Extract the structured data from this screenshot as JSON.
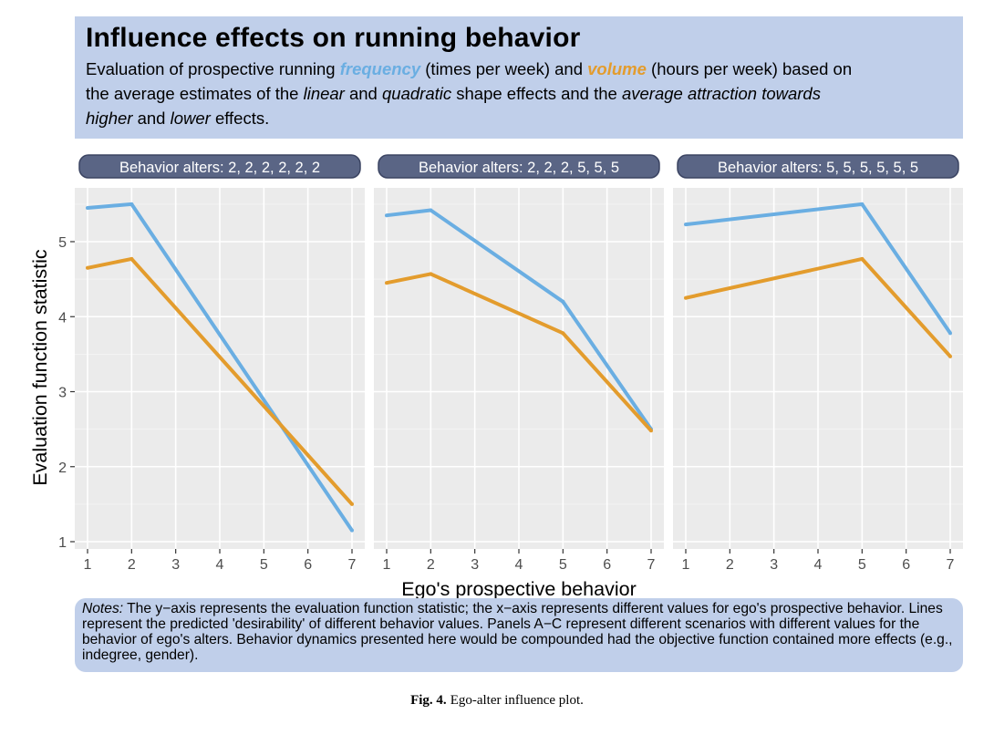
{
  "header": {
    "title": "Influence effects on running behavior",
    "line1_a": "Evaluation of prospective running ",
    "line1_freq": "frequency",
    "line1_b": " (times per week) and ",
    "line1_vol": "volume",
    "line1_c": " (hours per week) based on",
    "line2_a": "the average estimates of the ",
    "line2_linear": "linear",
    "line2_b": " and ",
    "line2_quadratic": "quadratic",
    "line2_c": " shape effects and the ",
    "line2_avg": "average attraction towards",
    "line3_higher": "higher",
    "line3_a": " and ",
    "line3_lower": "lower",
    "line3_b": " effects."
  },
  "colors": {
    "frequency": "#6aaee2",
    "volume": "#e39c2d",
    "panel_bg": "#ebebeb",
    "strip_bg": "#5a6585",
    "box_bg": "#c0cfea"
  },
  "chart_data": {
    "type": "line",
    "xlabel": "Ego's prospective behavior",
    "ylabel": "Evaluation function statistic",
    "xlim": [
      1,
      7
    ],
    "ylim": [
      1,
      5.5
    ],
    "x_ticks": [
      1,
      2,
      3,
      4,
      5,
      6,
      7
    ],
    "y_ticks": [
      1,
      2,
      3,
      4,
      5
    ],
    "grid": true,
    "panels": [
      {
        "strip": "Behavior alters: 2, 2, 2, 2, 2, 2",
        "series": [
          {
            "key": "frequency",
            "x": [
              1,
              2,
              7
            ],
            "y": [
              5.45,
              5.5,
              1.15
            ]
          },
          {
            "key": "volume",
            "x": [
              1,
              2,
              7
            ],
            "y": [
              4.65,
              4.77,
              1.5
            ]
          }
        ]
      },
      {
        "strip": "Behavior alters: 2, 2, 2, 5, 5, 5",
        "series": [
          {
            "key": "frequency",
            "x": [
              1,
              2,
              5,
              7
            ],
            "y": [
              5.35,
              5.42,
              4.2,
              2.5
            ]
          },
          {
            "key": "volume",
            "x": [
              1,
              2,
              5,
              7
            ],
            "y": [
              4.45,
              4.57,
              3.78,
              2.48
            ]
          }
        ]
      },
      {
        "strip": "Behavior alters: 5, 5, 5, 5, 5, 5",
        "series": [
          {
            "key": "frequency",
            "x": [
              1,
              5,
              7
            ],
            "y": [
              5.23,
              5.5,
              3.78
            ]
          },
          {
            "key": "volume",
            "x": [
              1,
              5,
              7
            ],
            "y": [
              4.25,
              4.77,
              3.47
            ]
          }
        ]
      }
    ]
  },
  "notes": {
    "label": "Notes:",
    "text": " The y−axis represents the evaluation function statistic; the x−axis represents different values for ego's prospective behavior. Lines represent the predicted 'desirability' of different behavior values. Panels A−C represent different scenarios with different values for the behavior of ego's alters. Behavior dynamics presented here would be compounded had the objective function contained more effects (e.g., indegree, gender)."
  },
  "caption": {
    "label": "Fig. 4.",
    "text": "Ego-alter influence plot."
  }
}
